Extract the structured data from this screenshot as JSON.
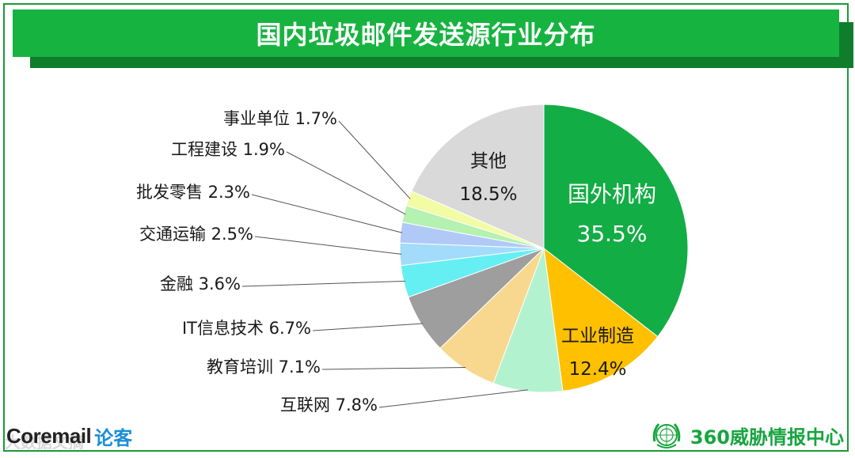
{
  "title": "国内垃圾邮件发送源行业分布",
  "colors": {
    "title_bg": "#17b340",
    "title_shadow": "#0f7d2a",
    "frame": "#1a9a3a",
    "leader": "#555555"
  },
  "chart_data": {
    "type": "pie",
    "start_angle_deg": 0,
    "direction": "clockwise",
    "slices": [
      {
        "label": "国外机构",
        "value": 35.5,
        "value_text": "35.5%",
        "color": "#12ad45",
        "label_position": "inside",
        "text_color": "#ffffff"
      },
      {
        "label": "工业制造",
        "value": 12.4,
        "value_text": "12.4%",
        "color": "#ffc000",
        "label_position": "inside",
        "text_color": "#1a1a1a"
      },
      {
        "label": "互联网",
        "value": 7.8,
        "value_text": "7.8%",
        "color": "#b3f2cf",
        "label_position": "outside"
      },
      {
        "label": "教育培训",
        "value": 7.1,
        "value_text": "7.1%",
        "color": "#f8d88e",
        "label_position": "outside"
      },
      {
        "label": "IT信息技术",
        "value": 6.7,
        "value_text": "6.7%",
        "color": "#9e9e9e",
        "label_position": "outside"
      },
      {
        "label": "金融",
        "value": 3.6,
        "value_text": "3.6%",
        "color": "#66eff2",
        "label_position": "outside"
      },
      {
        "label": "交通运输",
        "value": 2.5,
        "value_text": "2.5%",
        "color": "#a3dbfb",
        "label_position": "outside"
      },
      {
        "label": "批发零售",
        "value": 2.3,
        "value_text": "2.3%",
        "color": "#b1c9f7",
        "label_position": "outside"
      },
      {
        "label": "工程建设",
        "value": 1.9,
        "value_text": "1.9%",
        "color": "#b5f1b0",
        "label_position": "outside"
      },
      {
        "label": "事业单位",
        "value": 1.7,
        "value_text": "1.7%",
        "color": "#f2fca4",
        "label_position": "outside"
      },
      {
        "label": "其他",
        "value": 18.5,
        "value_text": "18.5%",
        "color": "#d9d9d9",
        "label_position": "inside",
        "text_color": "#1a1a1a"
      }
    ]
  },
  "footer": {
    "left_brand": "Coremail",
    "left_brand_suffix": "论客",
    "right_brand": "360威胁情报中心",
    "right_logo_icon": "un-emblem-icon"
  },
  "watermark": "大数据文摘"
}
